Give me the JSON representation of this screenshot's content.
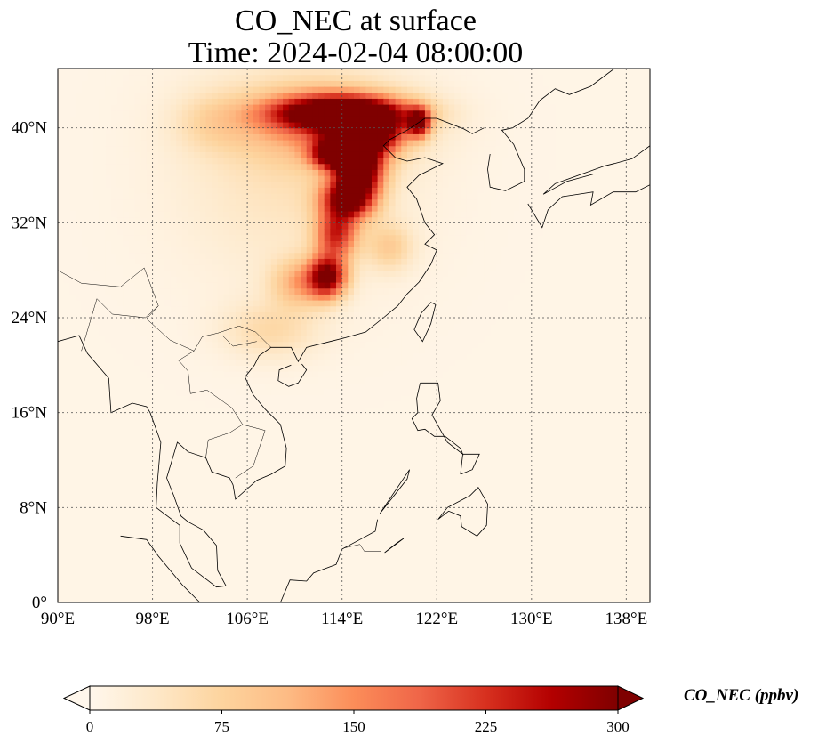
{
  "chart_data": {
    "type": "heatmap",
    "title_line1": "CO_NEC at surface",
    "title_line2": "Time: 2024-02-04 08:00:00",
    "variable": "CO_NEC",
    "units": "ppbv",
    "x_range": [
      90,
      140
    ],
    "y_range": [
      0,
      45
    ],
    "x_ticks": [
      90,
      98,
      106,
      114,
      122,
      130,
      138
    ],
    "x_tick_labels": [
      "90°E",
      "98°E",
      "106°E",
      "114°E",
      "122°E",
      "130°E",
      "138°E"
    ],
    "y_ticks": [
      0,
      8,
      16,
      24,
      32,
      40
    ],
    "y_tick_labels": [
      "0°",
      "8°N",
      "16°N",
      "24°N",
      "32°N",
      "40°N"
    ],
    "grid": true,
    "grid_style": "dotted",
    "colormap": "OrRd",
    "colorbar": {
      "label": "CO_NEC (ppbv)",
      "range": [
        0,
        300
      ],
      "ticks": [
        0,
        75,
        150,
        225,
        300
      ],
      "tick_labels": [
        "0",
        "75",
        "150",
        "225",
        "300"
      ],
      "extend": "both",
      "orientation": "horizontal",
      "colors": [
        "#fff7ec",
        "#fee8c8",
        "#fdd49e",
        "#fdbb84",
        "#fc8d59",
        "#ef6548",
        "#d7301f",
        "#b30000",
        "#7f0000"
      ]
    },
    "plumes": [
      {
        "lon": 112.5,
        "lat": 40.5,
        "lon_halfwidth": 9,
        "lat_halfwidth": 4,
        "value": 120
      },
      {
        "lon": 110,
        "lat": 37,
        "lon_halfwidth": 12,
        "lat_halfwidth": 12,
        "value": 45
      },
      {
        "lon": 114,
        "lat": 41.3,
        "lon_halfwidth": 7,
        "lat_halfwidth": 1.8,
        "value": 320
      },
      {
        "lon": 116,
        "lat": 39.5,
        "lon_halfwidth": 3.5,
        "lat_halfwidth": 2.2,
        "value": 320
      },
      {
        "lon": 113.5,
        "lat": 37.8,
        "lon_halfwidth": 2.5,
        "lat_halfwidth": 1.5,
        "value": 290
      },
      {
        "lon": 115.5,
        "lat": 36.5,
        "lon_halfwidth": 2.5,
        "lat_halfwidth": 2.5,
        "value": 300
      },
      {
        "lon": 114.5,
        "lat": 34,
        "lon_halfwidth": 2.8,
        "lat_halfwidth": 2.2,
        "value": 290
      },
      {
        "lon": 113.5,
        "lat": 31,
        "lon_halfwidth": 2.2,
        "lat_halfwidth": 2.5,
        "value": 200
      },
      {
        "lon": 112.8,
        "lat": 27.5,
        "lon_halfwidth": 2,
        "lat_halfwidth": 2.2,
        "value": 270
      },
      {
        "lon": 110.5,
        "lat": 27,
        "lon_halfwidth": 3,
        "lat_halfwidth": 2.5,
        "value": 110
      },
      {
        "lon": 108,
        "lat": 23,
        "lon_halfwidth": 5,
        "lat_halfwidth": 3,
        "value": 55
      },
      {
        "lon": 118,
        "lat": 30,
        "lon_halfwidth": 2.5,
        "lat_halfwidth": 2.5,
        "value": 70
      },
      {
        "lon": 120.5,
        "lat": 40.5,
        "lon_halfwidth": 1.2,
        "lat_halfwidth": 1.5,
        "value": 250
      },
      {
        "lon": 103,
        "lat": 40.5,
        "lon_halfwidth": 4,
        "lat_halfwidth": 3,
        "value": 40
      }
    ],
    "background_value": 6
  }
}
